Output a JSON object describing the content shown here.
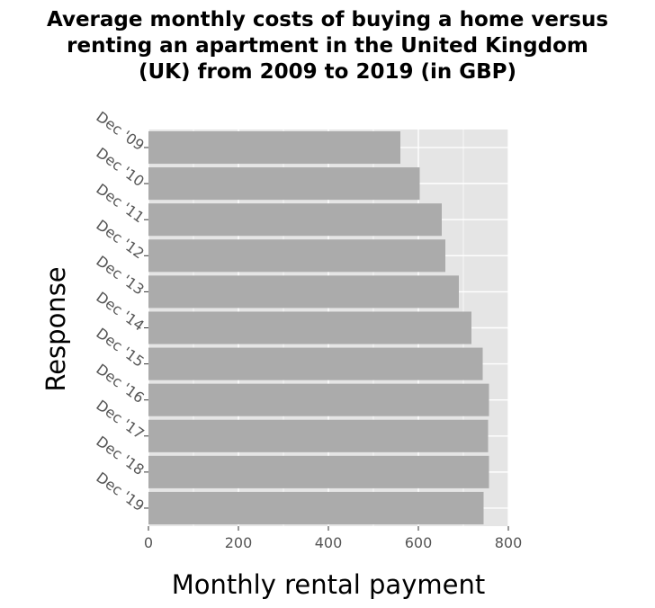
{
  "chart_data": {
    "type": "bar",
    "orientation": "horizontal",
    "title_lines": [
      "Average monthly costs of buying a home versus",
      "renting an apartment in the United Kingdom",
      "(UK) from 2009 to 2019 (in GBP)"
    ],
    "xlabel": "Monthly rental payment",
    "ylabel": "Response",
    "categories": [
      "Dec '09",
      "Dec '10",
      "Dec '11",
      "Dec '12",
      "Dec '13",
      "Dec '14",
      "Dec '15",
      "Dec '16",
      "Dec '17",
      "Dec '18",
      "Dec '19"
    ],
    "values": [
      560,
      603,
      652,
      660,
      690,
      718,
      743,
      757,
      755,
      757,
      745
    ],
    "xlim": [
      0,
      800
    ],
    "xticks": [
      "0",
      "200",
      "400",
      "600",
      "800"
    ],
    "grid": true,
    "colors": {
      "bar": "#ababab",
      "panel": "#e5e5e5",
      "grid": "#ffffff"
    }
  }
}
